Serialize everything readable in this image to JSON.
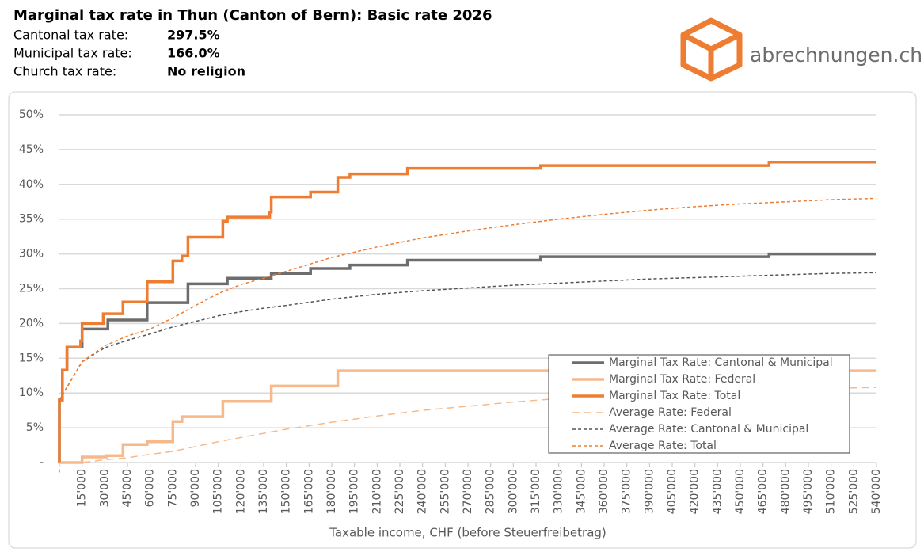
{
  "header": {
    "rows": [
      {
        "label": "Cantonal tax rate:",
        "value": "297.5%"
      },
      {
        "label": "Municipal tax rate:",
        "value": "166.0%"
      },
      {
        "label": "Church tax rate:",
        "value": "No religion"
      }
    ],
    "logo_text": "abrechnungen.ch"
  },
  "chart_data": {
    "type": "line",
    "title": "Marginal tax rate in Thun (Canton of Bern): Basic rate 2026",
    "x_label": "Taxable income, CHF (before Steuerfreibetrag)",
    "xlim": [
      0,
      540000
    ],
    "ylim": [
      0,
      50
    ],
    "grid": true,
    "legend": "lower right",
    "xticks": [
      {
        "value": 0,
        "label": "-"
      },
      {
        "value": 15000,
        "label": "15'000"
      },
      {
        "value": 30000,
        "label": "30'000"
      },
      {
        "value": 45000,
        "label": "45'000"
      },
      {
        "value": 60000,
        "label": "60'000"
      },
      {
        "value": 75000,
        "label": "75'000"
      },
      {
        "value": 90000,
        "label": "90'000"
      },
      {
        "value": 105000,
        "label": "105'000"
      },
      {
        "value": 120000,
        "label": "120'000"
      },
      {
        "value": 135000,
        "label": "135'000"
      },
      {
        "value": 150000,
        "label": "150'000"
      },
      {
        "value": 165000,
        "label": "165'000"
      },
      {
        "value": 180000,
        "label": "180'000"
      },
      {
        "value": 195000,
        "label": "195'000"
      },
      {
        "value": 210000,
        "label": "210'000"
      },
      {
        "value": 225000,
        "label": "225'000"
      },
      {
        "value": 240000,
        "label": "240'000"
      },
      {
        "value": 255000,
        "label": "255'000"
      },
      {
        "value": 270000,
        "label": "270'000"
      },
      {
        "value": 285000,
        "label": "285'000"
      },
      {
        "value": 300000,
        "label": "300'000"
      },
      {
        "value": 315000,
        "label": "315'000"
      },
      {
        "value": 330000,
        "label": "330'000"
      },
      {
        "value": 345000,
        "label": "345'000"
      },
      {
        "value": 360000,
        "label": "360'000"
      },
      {
        "value": 375000,
        "label": "375'000"
      },
      {
        "value": 390000,
        "label": "390'000"
      },
      {
        "value": 405000,
        "label": "405'000"
      },
      {
        "value": 420000,
        "label": "420'000"
      },
      {
        "value": 435000,
        "label": "435'000"
      },
      {
        "value": 450000,
        "label": "450'000"
      },
      {
        "value": 465000,
        "label": "465'000"
      },
      {
        "value": 480000,
        "label": "480'000"
      },
      {
        "value": 495000,
        "label": "495'000"
      },
      {
        "value": 510000,
        "label": "510'000"
      },
      {
        "value": 525000,
        "label": "525'000"
      },
      {
        "value": 540000,
        "label": "540'000"
      }
    ],
    "yticks": [
      {
        "value": 0,
        "label": "-"
      },
      {
        "value": 5,
        "label": "5%"
      },
      {
        "value": 10,
        "label": "10%"
      },
      {
        "value": 15,
        "label": "15%"
      },
      {
        "value": 20,
        "label": "20%"
      },
      {
        "value": 25,
        "label": "25%"
      },
      {
        "value": 30,
        "label": "30%"
      },
      {
        "value": 35,
        "label": "35%"
      },
      {
        "value": 40,
        "label": "40%"
      },
      {
        "value": 45,
        "label": "45%"
      },
      {
        "value": 50,
        "label": "50%"
      }
    ],
    "series": [
      {
        "name": "Marginal Tax Rate: Cantonal & Municipal",
        "color": "#6d6d6d",
        "linestyle": "solid",
        "weight": "thick",
        "x": [
          0,
          0,
          2000,
          2000,
          5000,
          5000,
          15000,
          15000,
          32000,
          32000,
          58000,
          58000,
          85000,
          85000,
          111000,
          111000,
          140000,
          140000,
          166000,
          166000,
          192000,
          192000,
          230000,
          230000,
          318000,
          318000,
          469000,
          469000,
          540000
        ],
        "values": [
          0,
          9,
          9,
          13.3,
          13.3,
          16.6,
          16.6,
          19.2,
          19.2,
          20.5,
          20.5,
          23,
          23,
          25.7,
          25.7,
          26.5,
          26.5,
          27.2,
          27.2,
          27.9,
          27.9,
          28.4,
          28.4,
          29.1,
          29.1,
          29.6,
          29.6,
          30,
          30
        ]
      },
      {
        "name": "Marginal Tax Rate: Federal",
        "color": "#f7b98b",
        "linestyle": "solid",
        "weight": "thick",
        "x": [
          0,
          15000,
          15000,
          31000,
          31000,
          42000,
          42000,
          58000,
          58000,
          75000,
          75000,
          81000,
          81000,
          108000,
          108000,
          140000,
          140000,
          184000,
          184000,
          540000
        ],
        "values": [
          0,
          0,
          0.8,
          0.8,
          1,
          1,
          2.6,
          2.6,
          3,
          3,
          5.9,
          5.9,
          6.6,
          6.6,
          8.8,
          8.8,
          11,
          11,
          13.2,
          13.2
        ]
      },
      {
        "name": "Marginal Tax Rate: Total",
        "color": "#ee7d31",
        "linestyle": "solid",
        "weight": "thick",
        "x": [
          0,
          0,
          2000,
          2000,
          5000,
          5000,
          14000,
          14000,
          15000,
          15000,
          29000,
          29000,
          42000,
          42000,
          58000,
          58000,
          75000,
          75000,
          81000,
          81000,
          85000,
          85000,
          108000,
          108000,
          111000,
          111000,
          139000,
          139000,
          140000,
          140000,
          166000,
          166000,
          184000,
          184000,
          192000,
          192000,
          230000,
          230000,
          318000,
          318000,
          469000,
          469000,
          540000
        ],
        "values": [
          0,
          9,
          9,
          13.3,
          13.3,
          16.6,
          16.6,
          17.5,
          17.5,
          20,
          20,
          21.4,
          21.4,
          23.1,
          23.1,
          26,
          26,
          29,
          29,
          29.7,
          29.7,
          32.4,
          32.4,
          34.7,
          34.7,
          35.3,
          35.3,
          36,
          36,
          38.2,
          38.2,
          38.9,
          38.9,
          41,
          41,
          41.5,
          41.5,
          42.3,
          42.3,
          42.7,
          42.7,
          43.2,
          43.2
        ]
      },
      {
        "name": "Average Rate: Federal",
        "color": "#f7b98b",
        "linestyle": "longdash",
        "weight": "thin",
        "x": [
          0,
          15000,
          30000,
          45000,
          60000,
          75000,
          90000,
          105000,
          120000,
          135000,
          150000,
          180000,
          210000,
          240000,
          270000,
          300000,
          330000,
          360000,
          390000,
          420000,
          450000,
          480000,
          510000,
          540000
        ],
        "values": [
          0,
          0,
          0.4,
          0.7,
          1.2,
          1.6,
          2.3,
          3,
          3.6,
          4.2,
          4.8,
          5.8,
          6.7,
          7.5,
          8.1,
          8.7,
          9.2,
          9.6,
          10,
          10.2,
          10.4,
          10.6,
          10.7,
          10.8
        ]
      },
      {
        "name": "Average Rate: Cantonal & Municipal",
        "color": "#555555",
        "linestyle": "dashed",
        "weight": "thin",
        "x": [
          0,
          15000,
          30000,
          45000,
          60000,
          75000,
          90000,
          105000,
          120000,
          135000,
          150000,
          180000,
          210000,
          240000,
          270000,
          300000,
          330000,
          360000,
          390000,
          420000,
          450000,
          480000,
          510000,
          540000
        ],
        "values": [
          9,
          14.5,
          16.5,
          17.6,
          18.5,
          19.5,
          20.3,
          21.1,
          21.7,
          22.2,
          22.6,
          23.5,
          24.2,
          24.7,
          25.1,
          25.5,
          25.8,
          26.1,
          26.4,
          26.6,
          26.8,
          27,
          27.2,
          27.3
        ]
      },
      {
        "name": "Average Rate: Total",
        "color": "#ee7d31",
        "linestyle": "dashed",
        "weight": "thin",
        "x": [
          0,
          15000,
          30000,
          45000,
          60000,
          75000,
          90000,
          105000,
          120000,
          135000,
          150000,
          180000,
          210000,
          240000,
          270000,
          300000,
          330000,
          360000,
          390000,
          420000,
          450000,
          480000,
          510000,
          540000
        ],
        "values": [
          9,
          14.5,
          16.8,
          18.2,
          19.2,
          20.8,
          22.6,
          24.3,
          25.6,
          26.5,
          27.5,
          29.5,
          31,
          32.3,
          33.3,
          34.2,
          35,
          35.7,
          36.3,
          36.8,
          37.2,
          37.5,
          37.8,
          38
        ]
      }
    ]
  }
}
